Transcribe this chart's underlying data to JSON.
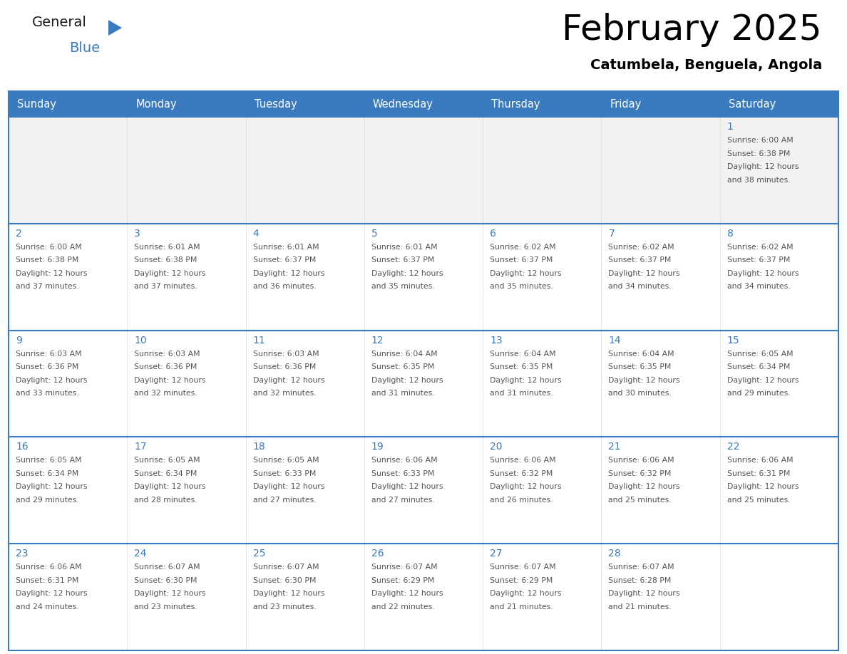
{
  "title": "February 2025",
  "subtitle": "Catumbela, Benguela, Angola",
  "header_color": "#3a7abf",
  "header_text_color": "#ffffff",
  "days_of_week": [
    "Sunday",
    "Monday",
    "Tuesday",
    "Wednesday",
    "Thursday",
    "Friday",
    "Saturday"
  ],
  "cell_bg_white": "#ffffff",
  "cell_bg_gray": "#f2f2f2",
  "border_color": "#3a7abf",
  "day_number_color": "#3a7abf",
  "text_color": "#555555",
  "weeks": [
    [
      {
        "day": null,
        "info": ""
      },
      {
        "day": null,
        "info": ""
      },
      {
        "day": null,
        "info": ""
      },
      {
        "day": null,
        "info": ""
      },
      {
        "day": null,
        "info": ""
      },
      {
        "day": null,
        "info": ""
      },
      {
        "day": 1,
        "info": "Sunrise: 6:00 AM\nSunset: 6:38 PM\nDaylight: 12 hours\nand 38 minutes."
      }
    ],
    [
      {
        "day": 2,
        "info": "Sunrise: 6:00 AM\nSunset: 6:38 PM\nDaylight: 12 hours\nand 37 minutes."
      },
      {
        "day": 3,
        "info": "Sunrise: 6:01 AM\nSunset: 6:38 PM\nDaylight: 12 hours\nand 37 minutes."
      },
      {
        "day": 4,
        "info": "Sunrise: 6:01 AM\nSunset: 6:37 PM\nDaylight: 12 hours\nand 36 minutes."
      },
      {
        "day": 5,
        "info": "Sunrise: 6:01 AM\nSunset: 6:37 PM\nDaylight: 12 hours\nand 35 minutes."
      },
      {
        "day": 6,
        "info": "Sunrise: 6:02 AM\nSunset: 6:37 PM\nDaylight: 12 hours\nand 35 minutes."
      },
      {
        "day": 7,
        "info": "Sunrise: 6:02 AM\nSunset: 6:37 PM\nDaylight: 12 hours\nand 34 minutes."
      },
      {
        "day": 8,
        "info": "Sunrise: 6:02 AM\nSunset: 6:37 PM\nDaylight: 12 hours\nand 34 minutes."
      }
    ],
    [
      {
        "day": 9,
        "info": "Sunrise: 6:03 AM\nSunset: 6:36 PM\nDaylight: 12 hours\nand 33 minutes."
      },
      {
        "day": 10,
        "info": "Sunrise: 6:03 AM\nSunset: 6:36 PM\nDaylight: 12 hours\nand 32 minutes."
      },
      {
        "day": 11,
        "info": "Sunrise: 6:03 AM\nSunset: 6:36 PM\nDaylight: 12 hours\nand 32 minutes."
      },
      {
        "day": 12,
        "info": "Sunrise: 6:04 AM\nSunset: 6:35 PM\nDaylight: 12 hours\nand 31 minutes."
      },
      {
        "day": 13,
        "info": "Sunrise: 6:04 AM\nSunset: 6:35 PM\nDaylight: 12 hours\nand 31 minutes."
      },
      {
        "day": 14,
        "info": "Sunrise: 6:04 AM\nSunset: 6:35 PM\nDaylight: 12 hours\nand 30 minutes."
      },
      {
        "day": 15,
        "info": "Sunrise: 6:05 AM\nSunset: 6:34 PM\nDaylight: 12 hours\nand 29 minutes."
      }
    ],
    [
      {
        "day": 16,
        "info": "Sunrise: 6:05 AM\nSunset: 6:34 PM\nDaylight: 12 hours\nand 29 minutes."
      },
      {
        "day": 17,
        "info": "Sunrise: 6:05 AM\nSunset: 6:34 PM\nDaylight: 12 hours\nand 28 minutes."
      },
      {
        "day": 18,
        "info": "Sunrise: 6:05 AM\nSunset: 6:33 PM\nDaylight: 12 hours\nand 27 minutes."
      },
      {
        "day": 19,
        "info": "Sunrise: 6:06 AM\nSunset: 6:33 PM\nDaylight: 12 hours\nand 27 minutes."
      },
      {
        "day": 20,
        "info": "Sunrise: 6:06 AM\nSunset: 6:32 PM\nDaylight: 12 hours\nand 26 minutes."
      },
      {
        "day": 21,
        "info": "Sunrise: 6:06 AM\nSunset: 6:32 PM\nDaylight: 12 hours\nand 25 minutes."
      },
      {
        "day": 22,
        "info": "Sunrise: 6:06 AM\nSunset: 6:31 PM\nDaylight: 12 hours\nand 25 minutes."
      }
    ],
    [
      {
        "day": 23,
        "info": "Sunrise: 6:06 AM\nSunset: 6:31 PM\nDaylight: 12 hours\nand 24 minutes."
      },
      {
        "day": 24,
        "info": "Sunrise: 6:07 AM\nSunset: 6:30 PM\nDaylight: 12 hours\nand 23 minutes."
      },
      {
        "day": 25,
        "info": "Sunrise: 6:07 AM\nSunset: 6:30 PM\nDaylight: 12 hours\nand 23 minutes."
      },
      {
        "day": 26,
        "info": "Sunrise: 6:07 AM\nSunset: 6:29 PM\nDaylight: 12 hours\nand 22 minutes."
      },
      {
        "day": 27,
        "info": "Sunrise: 6:07 AM\nSunset: 6:29 PM\nDaylight: 12 hours\nand 21 minutes."
      },
      {
        "day": 28,
        "info": "Sunrise: 6:07 AM\nSunset: 6:28 PM\nDaylight: 12 hours\nand 21 minutes."
      },
      {
        "day": null,
        "info": ""
      }
    ]
  ],
  "logo_general_color": "#1a1a1a",
  "logo_blue_color": "#3a7abf",
  "logo_triangle_color": "#3a7abf"
}
